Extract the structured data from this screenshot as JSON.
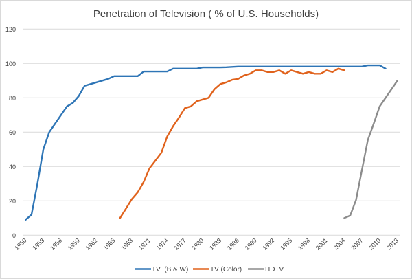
{
  "chart_data": {
    "type": "line",
    "title": "Penetration of Television ( % of U.S. Households)",
    "xlabel": "",
    "ylabel": "",
    "ylim": [
      0,
      120
    ],
    "yticks": [
      0,
      20,
      40,
      60,
      80,
      100,
      120
    ],
    "grid": true,
    "legend_position": "bottom",
    "x_start": 1950,
    "x_end": 2013,
    "xtick_labels": [
      "1950",
      "1953",
      "1956",
      "1959",
      "1962",
      "1965",
      "1968",
      "1971",
      "1974",
      "1977",
      "1980",
      "1983",
      "1986",
      "1989",
      "1992",
      "1995",
      "1998",
      "2001",
      "2004",
      "2007",
      "2010",
      "2013"
    ],
    "series": [
      {
        "name": "TV  (B & W)",
        "color": "#2e75b6",
        "start_year": 1950,
        "values": [
          9,
          12,
          30,
          50,
          60,
          65,
          70,
          75,
          77,
          81,
          87,
          88,
          89,
          90,
          91,
          92.6,
          92.6,
          92.6,
          92.6,
          92.6,
          95.3,
          95.3,
          95.3,
          95.3,
          95.3,
          97,
          97,
          97,
          97,
          97,
          97.7,
          97.7,
          97.7,
          97.7,
          97.8,
          98,
          98.2,
          98.2,
          98.2,
          98.2,
          98.2,
          98.2,
          98.2,
          98.2,
          98.2,
          98.2,
          98.2,
          98.2,
          98.2,
          98.2,
          98.2,
          98.2,
          98.2,
          98.2,
          98.2,
          98.2,
          98.2,
          98.2,
          98.9,
          98.9,
          98.9,
          97
        ]
      },
      {
        "name": "TV (Color)",
        "color": "#e0621c",
        "start_year": 1966,
        "values": [
          10,
          15.5,
          21,
          25,
          31,
          39,
          43.5,
          48,
          57.5,
          63.5,
          68.5,
          74,
          75,
          78,
          79,
          80,
          85,
          88,
          89,
          90.5,
          91,
          93,
          94,
          96,
          96,
          95,
          95,
          96,
          94,
          96,
          95,
          94,
          95,
          94,
          94,
          96,
          95,
          97,
          96
        ]
      },
      {
        "name": "HDTV",
        "color": "#8c8c8c",
        "start_year": 2004,
        "values": [
          10,
          11.5,
          20.5,
          38,
          55.5,
          65,
          75,
          80,
          85,
          90
        ]
      }
    ]
  }
}
